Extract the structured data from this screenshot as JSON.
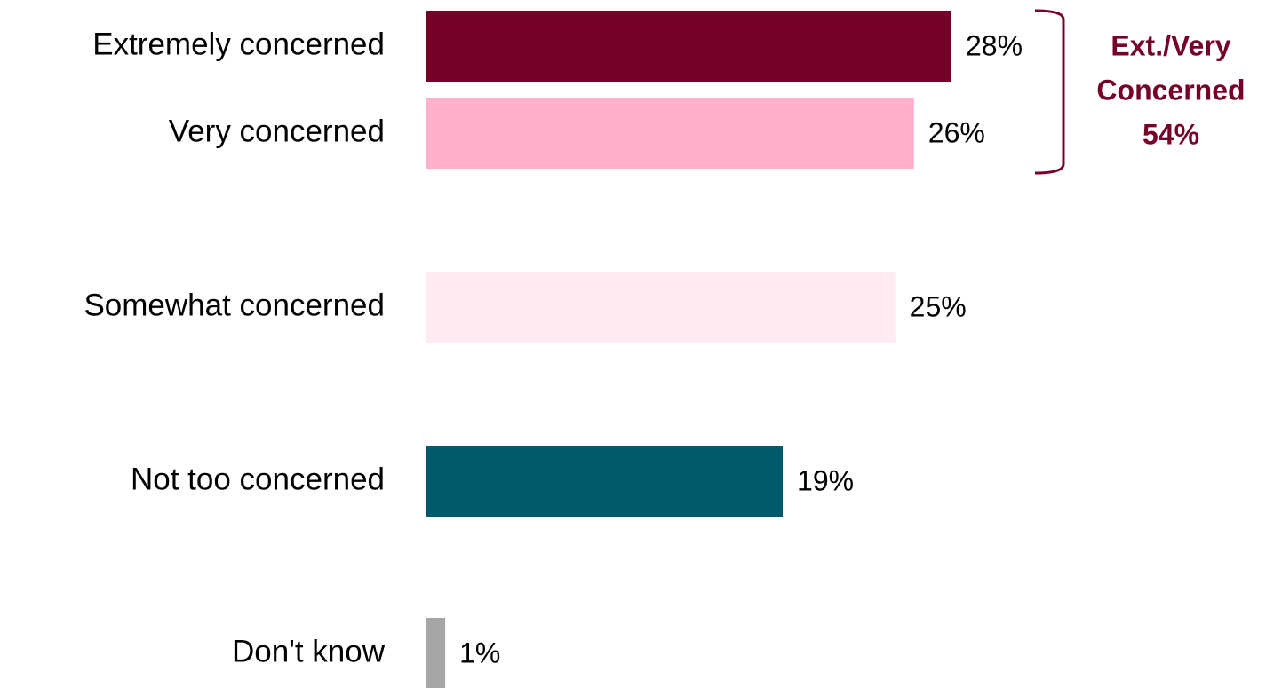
{
  "chart_data": {
    "type": "bar",
    "orientation": "horizontal",
    "categories": [
      "Extremely concerned",
      "Very concerned",
      "Somewhat concerned",
      "Not too concerned",
      "Don't know"
    ],
    "values": [
      28,
      26,
      25,
      19,
      1
    ],
    "value_labels": [
      "28%",
      "26%",
      "25%",
      "19%",
      "1%"
    ],
    "colors": [
      "#76002a",
      "#ffb0c8",
      "#ffebf0",
      "#005a69",
      "#a6a6a6"
    ],
    "xlim": [
      0,
      28
    ],
    "annotation": {
      "text": [
        "Ext./Very",
        "Concerned"
      ],
      "value": 54,
      "value_label": "54%",
      "color": "#76002a"
    }
  }
}
